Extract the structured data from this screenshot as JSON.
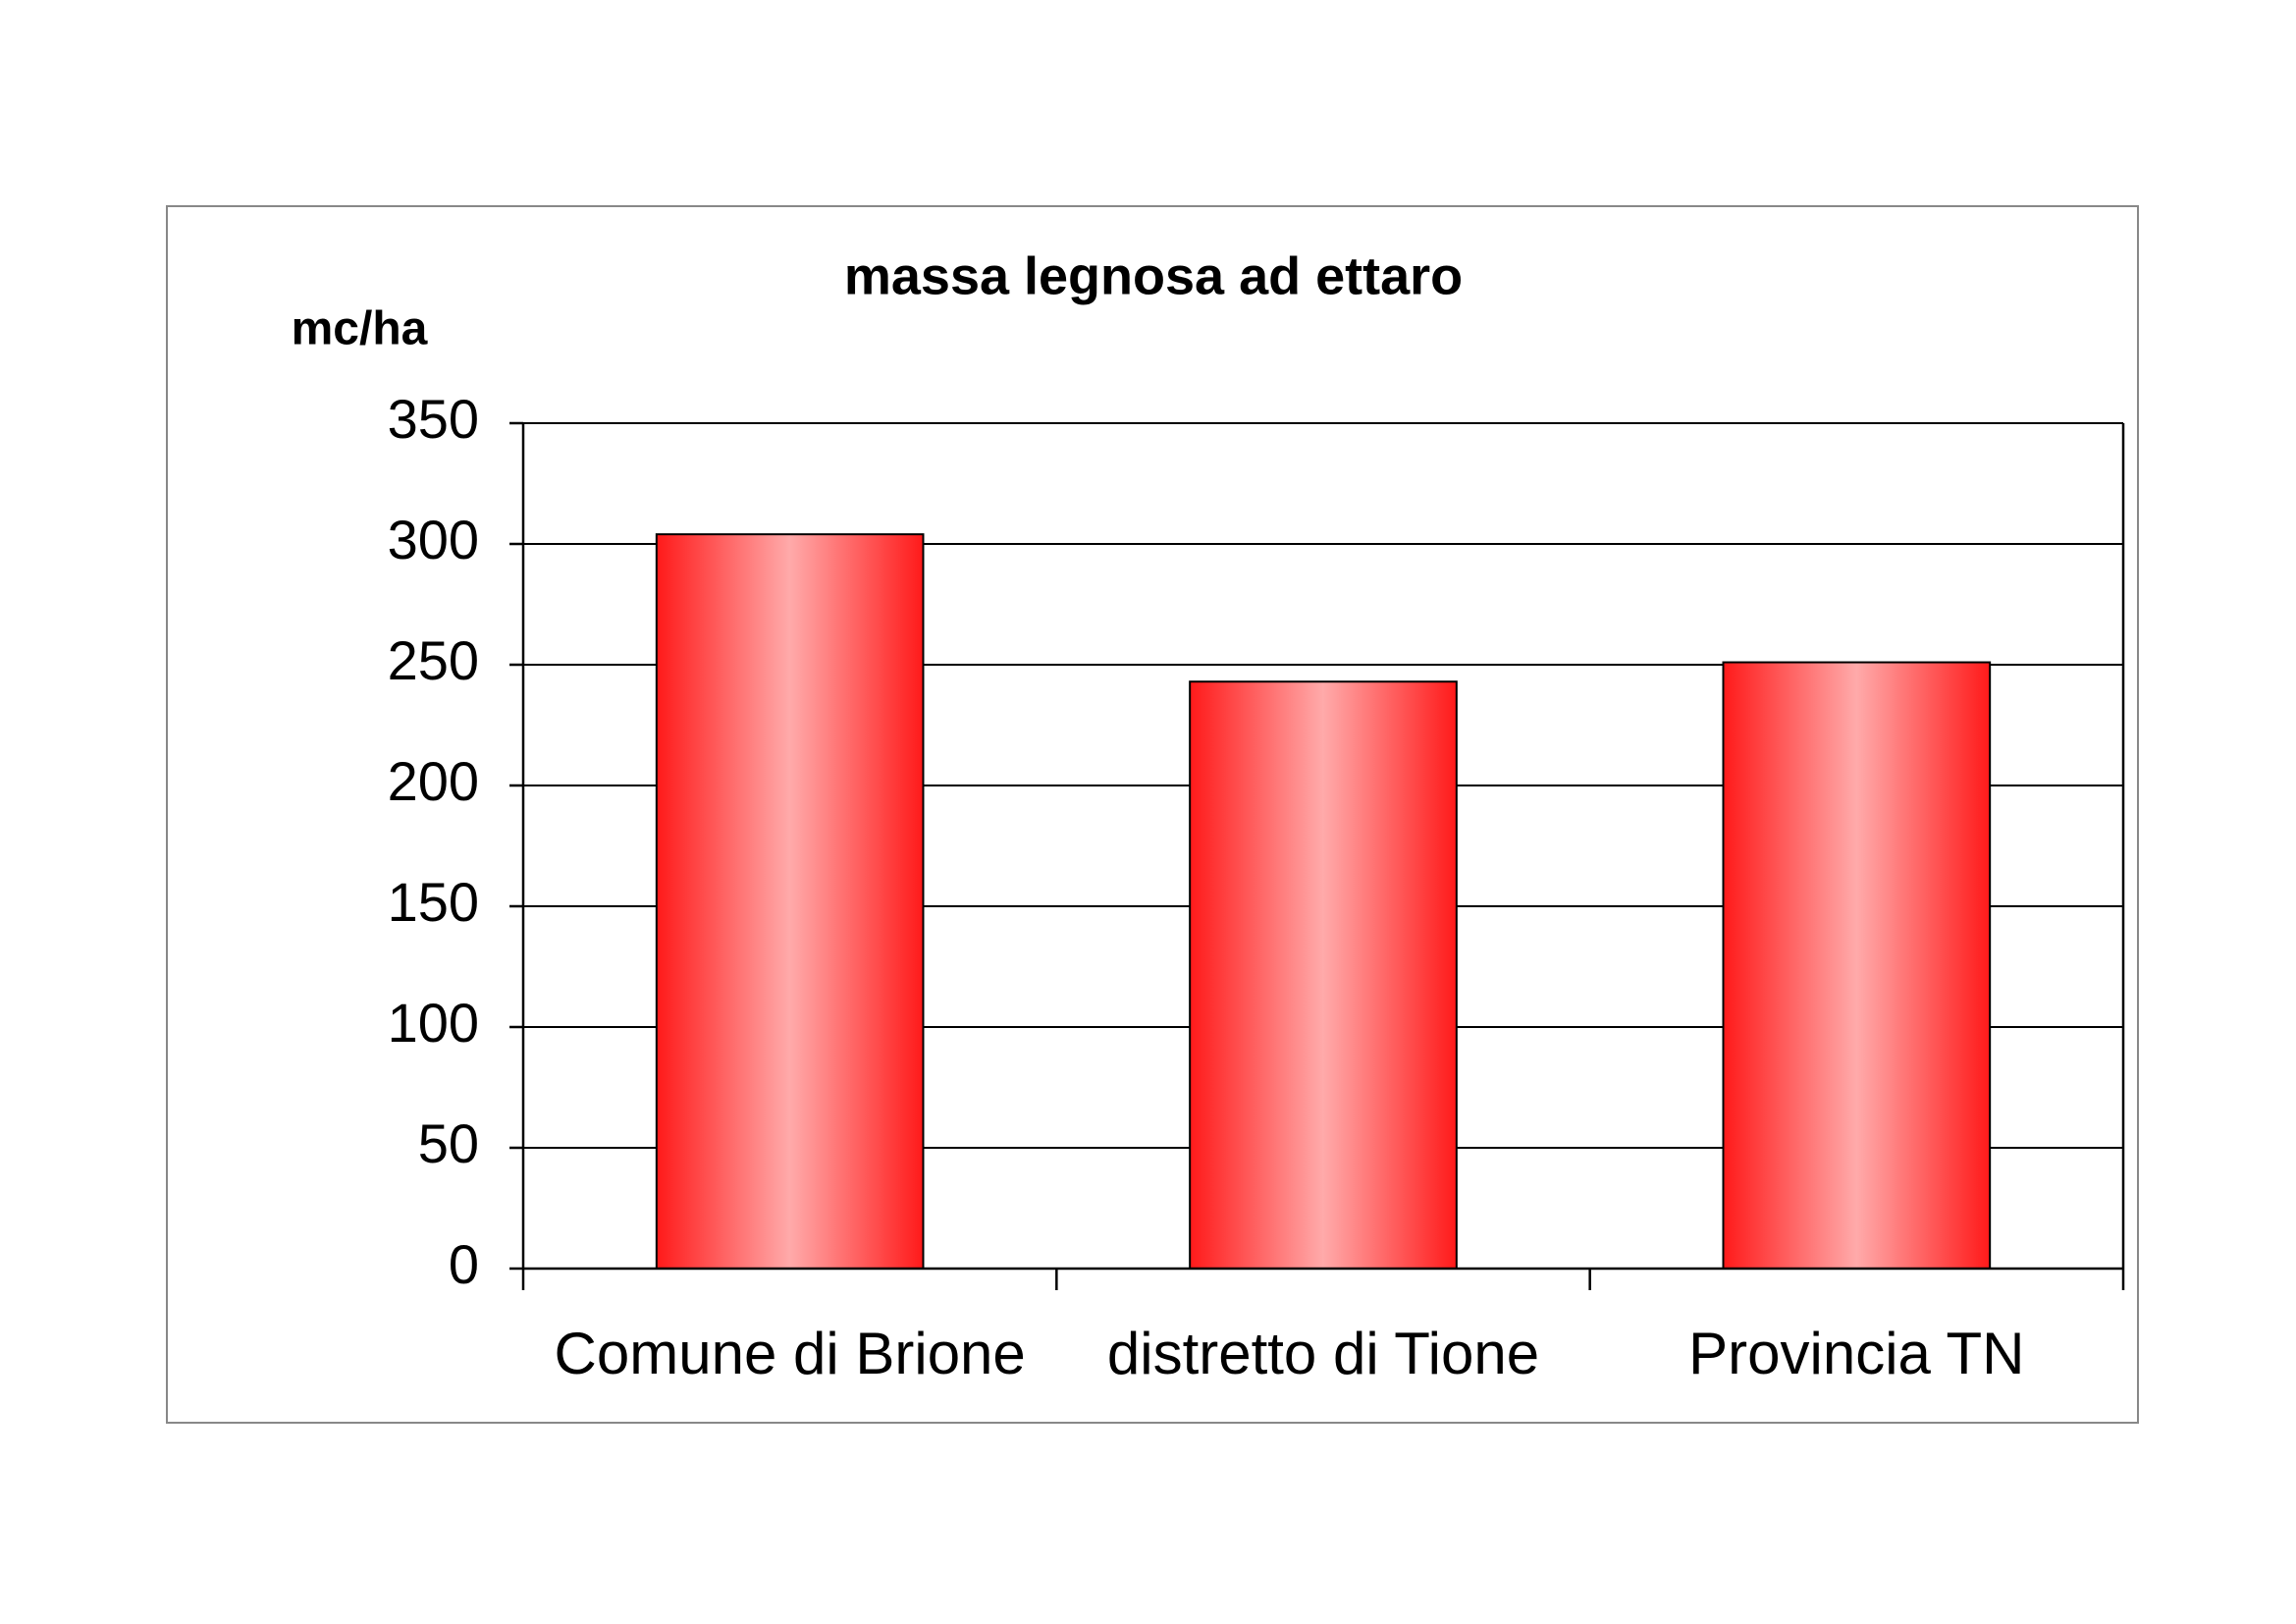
{
  "chart_data": {
    "type": "bar",
    "title": "massa legnosa ad ettaro",
    "y_label": "mc/ha",
    "categories": [
      "Comune di Brione",
      "distretto di Tione",
      "Provincia TN"
    ],
    "values": [
      304,
      243,
      251
    ],
    "color": "#ff2020",
    "ylim": [
      0,
      350
    ],
    "yticks": [
      0,
      50,
      100,
      150,
      200,
      250,
      300,
      350
    ],
    "grid": true
  }
}
